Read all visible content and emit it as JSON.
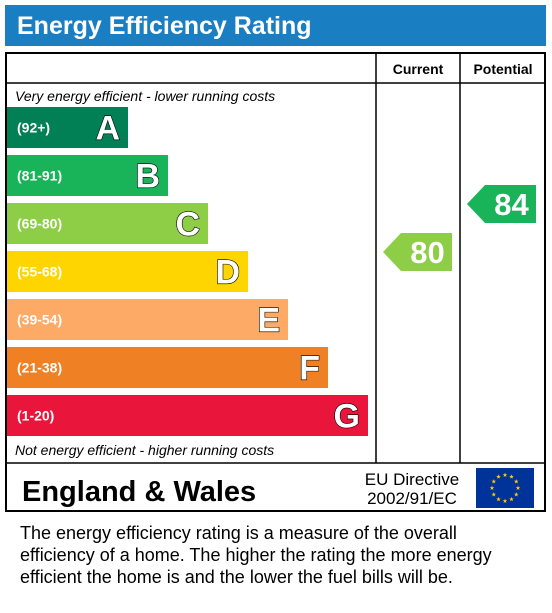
{
  "title": "Energy Efficiency Rating",
  "columns": {
    "current": "Current",
    "potential": "Potential"
  },
  "top_note": "Very energy efficient - lower running costs",
  "bottom_note": "Not energy efficient - higher running costs",
  "region": "England & Wales",
  "directive": {
    "line1": "EU Directive",
    "line2": "2002/91/EC"
  },
  "description": [
    "The energy efficiency rating is a measure of the overall",
    "efficiency of a home.  The higher the rating the more energy",
    "efficient the home is and the lower the fuel bills will be."
  ],
  "chart_data": {
    "type": "bar",
    "categories": [
      "A",
      "B",
      "C",
      "D",
      "E",
      "F",
      "G"
    ],
    "ranges": [
      "(92+)",
      "(81-91)",
      "(69-80)",
      "(55-68)",
      "(39-54)",
      "(21-38)",
      "(1-20)"
    ],
    "colors": [
      "#008054",
      "#19b459",
      "#8dce46",
      "#ffd500",
      "#fcaa65",
      "#ef8023",
      "#e9153b"
    ],
    "band_min": [
      92,
      81,
      69,
      55,
      39,
      21,
      1
    ],
    "current": {
      "value": 80,
      "label": "80",
      "band": "C",
      "color": "#8dce46"
    },
    "potential": {
      "value": 84,
      "label": "84",
      "band": "B",
      "color": "#19b459"
    }
  }
}
